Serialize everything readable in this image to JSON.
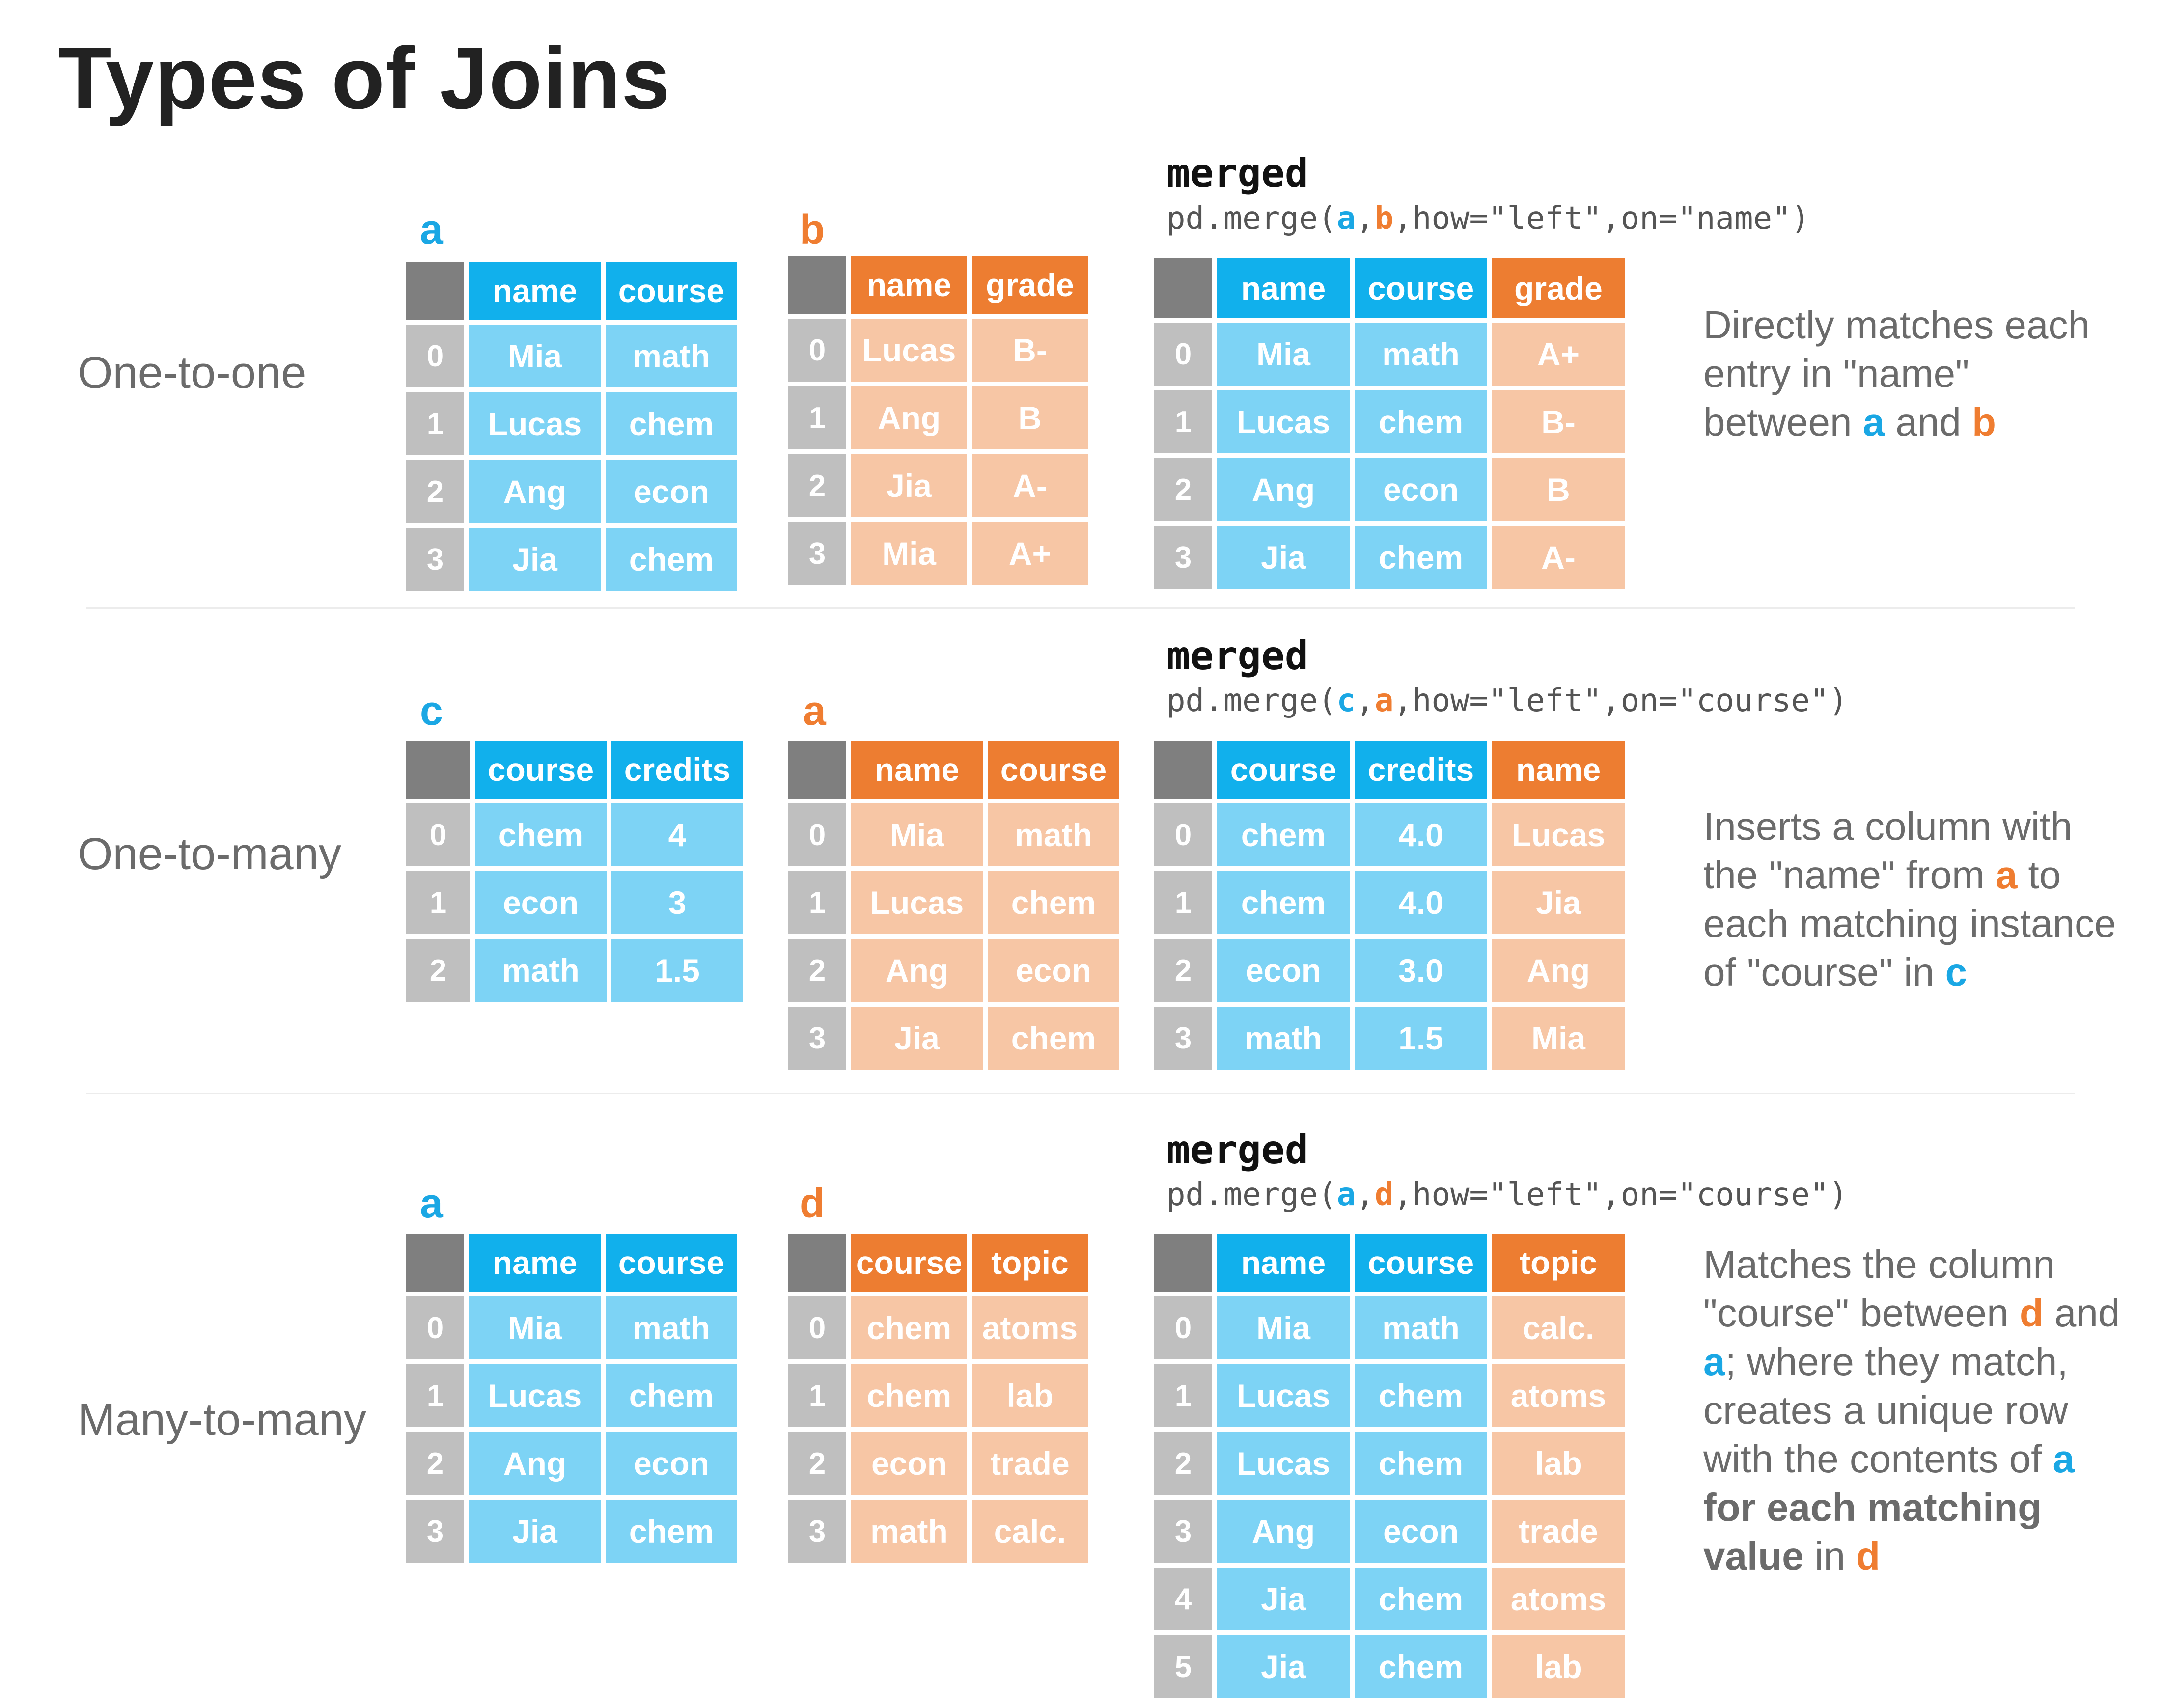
{
  "title": "Types of Joins",
  "colors": {
    "index_header": "#7f7f7f",
    "index_cell": "#bfbfbf",
    "blue_header": "#11b0ec",
    "blue_cell": "#7dd3f5",
    "orange_header": "#ed7d31",
    "orange_cell": "#f7c6a5",
    "text_label_blue": "#1aa7e4",
    "text_label_orange": "#ef7d31",
    "text_gray": "#6b6b6b"
  },
  "sections": [
    {
      "label": "One-to-one",
      "merged_title": "merged",
      "merge_code": {
        "pre": "pd.merge(",
        "arg1": "a",
        "sep": ",",
        "arg2": "b",
        "post": ",how=\"left\",on=\"name\")"
      },
      "left": {
        "label": "a",
        "columns": [
          "name",
          "course"
        ],
        "index": [
          "0",
          "1",
          "2",
          "3"
        ],
        "rows": [
          [
            "Mia",
            "math"
          ],
          [
            "Lucas",
            "chem"
          ],
          [
            "Ang",
            "econ"
          ],
          [
            "Jia",
            "chem"
          ]
        ]
      },
      "right": {
        "label": "b",
        "columns": [
          "name",
          "grade"
        ],
        "index": [
          "0",
          "1",
          "2",
          "3"
        ],
        "rows": [
          [
            "Lucas",
            "B-"
          ],
          [
            "Ang",
            "B"
          ],
          [
            "Jia",
            "A-"
          ],
          [
            "Mia",
            "A+"
          ]
        ]
      },
      "merged": {
        "columns": [
          "name",
          "course",
          "grade"
        ],
        "index": [
          "0",
          "1",
          "2",
          "3"
        ],
        "rows": [
          [
            "Mia",
            "math",
            "A+"
          ],
          [
            "Lucas",
            "chem",
            "B-"
          ],
          [
            "Ang",
            "econ",
            "B"
          ],
          [
            "Jia",
            "chem",
            "A-"
          ]
        ]
      },
      "description": [
        [
          {
            "t": "Directly matches each"
          }
        ],
        [
          {
            "t": "entry in \"name\""
          }
        ],
        [
          {
            "t": "between "
          },
          {
            "t": "a",
            "c": "blue"
          },
          {
            "t": " and "
          },
          {
            "t": "b",
            "c": "orange"
          }
        ]
      ]
    },
    {
      "label": "One-to-many",
      "merged_title": "merged",
      "merge_code": {
        "pre": "pd.merge(",
        "arg1": "c",
        "sep": ",",
        "arg2": "a",
        "post": ",how=\"left\",on=\"course\")"
      },
      "left": {
        "label": "c",
        "columns": [
          "course",
          "credits"
        ],
        "index": [
          "0",
          "1",
          "2"
        ],
        "rows": [
          [
            "chem",
            "4"
          ],
          [
            "econ",
            "3"
          ],
          [
            "math",
            "1.5"
          ]
        ]
      },
      "right": {
        "label": "a",
        "columns": [
          "name",
          "course"
        ],
        "index": [
          "0",
          "1",
          "2",
          "3"
        ],
        "rows": [
          [
            "Mia",
            "math"
          ],
          [
            "Lucas",
            "chem"
          ],
          [
            "Ang",
            "econ"
          ],
          [
            "Jia",
            "chem"
          ]
        ]
      },
      "merged": {
        "columns": [
          "course",
          "credits",
          "name"
        ],
        "index": [
          "0",
          "1",
          "2",
          "3"
        ],
        "rows": [
          [
            "chem",
            "4.0",
            "Lucas"
          ],
          [
            "chem",
            "4.0",
            "Jia"
          ],
          [
            "econ",
            "3.0",
            "Ang"
          ],
          [
            "math",
            "1.5",
            "Mia"
          ]
        ]
      },
      "description": [
        [
          {
            "t": "Inserts a column with"
          }
        ],
        [
          {
            "t": "the \"name\" from "
          },
          {
            "t": "a",
            "c": "orange"
          },
          {
            "t": " to"
          }
        ],
        [
          {
            "t": "each matching instance"
          }
        ],
        [
          {
            "t": "of \"course\" in "
          },
          {
            "t": "c",
            "c": "blue"
          }
        ]
      ]
    },
    {
      "label": "Many-to-many",
      "merged_title": "merged",
      "merge_code": {
        "pre": "pd.merge(",
        "arg1": "a",
        "sep": ",",
        "arg2": "d",
        "post": ",how=\"left\",on=\"course\")"
      },
      "left": {
        "label": "a",
        "columns": [
          "name",
          "course"
        ],
        "index": [
          "0",
          "1",
          "2",
          "3"
        ],
        "rows": [
          [
            "Mia",
            "math"
          ],
          [
            "Lucas",
            "chem"
          ],
          [
            "Ang",
            "econ"
          ],
          [
            "Jia",
            "chem"
          ]
        ]
      },
      "right": {
        "label": "d",
        "columns": [
          "course",
          "topic"
        ],
        "index": [
          "0",
          "1",
          "2",
          "3"
        ],
        "rows": [
          [
            "chem",
            "atoms"
          ],
          [
            "chem",
            "lab"
          ],
          [
            "econ",
            "trade"
          ],
          [
            "math",
            "calc."
          ]
        ]
      },
      "merged": {
        "columns": [
          "name",
          "course",
          "topic"
        ],
        "index": [
          "0",
          "1",
          "2",
          "3",
          "4",
          "5"
        ],
        "rows": [
          [
            "Mia",
            "math",
            "calc."
          ],
          [
            "Lucas",
            "chem",
            "atoms"
          ],
          [
            "Lucas",
            "chem",
            "lab"
          ],
          [
            "Ang",
            "econ",
            "trade"
          ],
          [
            "Jia",
            "chem",
            "atoms"
          ],
          [
            "Jia",
            "chem",
            "lab"
          ]
        ]
      },
      "description": [
        [
          {
            "t": "Matches the column"
          }
        ],
        [
          {
            "t": "\"course\" between "
          },
          {
            "t": "d",
            "c": "orange"
          },
          {
            "t": " and"
          }
        ],
        [
          {
            "t": "a",
            "c": "blue"
          },
          {
            "t": "; where they match,"
          }
        ],
        [
          {
            "t": "creates a unique row"
          }
        ],
        [
          {
            "t": "with the contents of "
          },
          {
            "t": "a",
            "c": "blue"
          }
        ],
        [
          {
            "t": "for each matching",
            "c": "strong"
          }
        ],
        [
          {
            "t": "value",
            "c": "strong"
          },
          {
            "t": " in "
          },
          {
            "t": "d",
            "c": "orange"
          }
        ]
      ]
    }
  ]
}
